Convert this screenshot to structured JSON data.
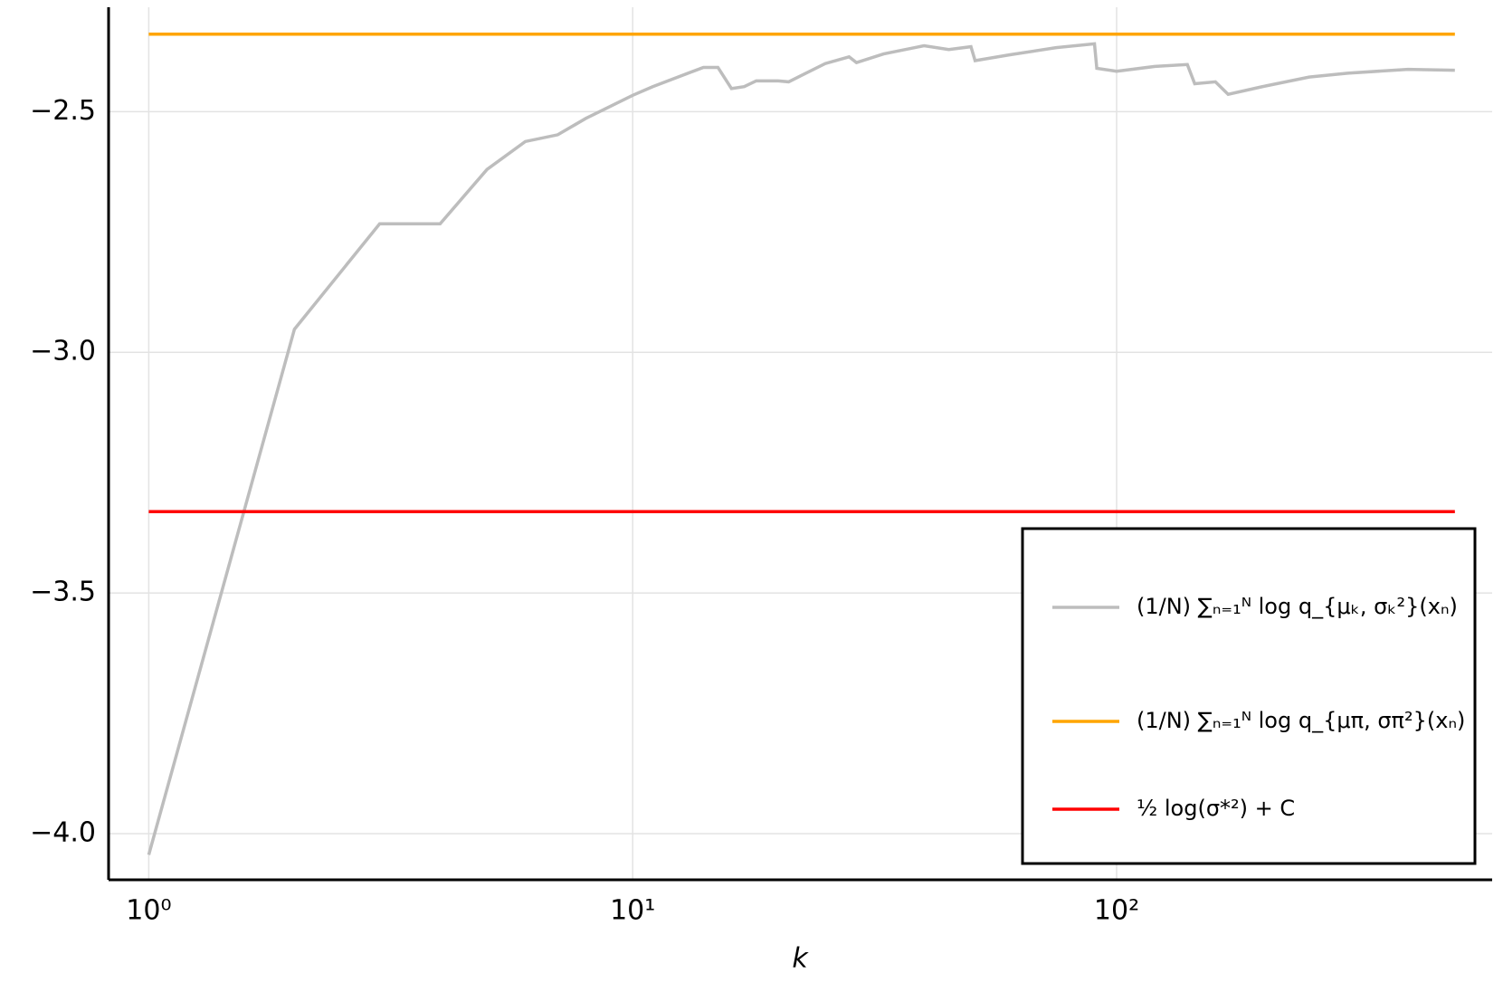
{
  "chart_data": {
    "type": "line",
    "xlabel": "k",
    "log_x": true,
    "grid": true,
    "legend": "bottom right",
    "xlim": [
      0.826,
      597
    ],
    "ylim": [
      -4.096,
      -2.283
    ],
    "xticks": [
      {
        "value": 1,
        "label": "10⁰"
      },
      {
        "value": 10,
        "label": "10¹"
      },
      {
        "value": 100,
        "label": "10²"
      }
    ],
    "yticks": [
      {
        "value": -4.0,
        "label": "−4.0"
      },
      {
        "value": -3.5,
        "label": "−3.5"
      },
      {
        "value": -3.0,
        "label": "−3.0"
      },
      {
        "value": -2.5,
        "label": "−2.5"
      }
    ],
    "series": [
      {
        "name": "(1/N) ∑ₙ₌₁ᴺ log q_{μₖ, σₖ²}(xₙ)",
        "color": "#bdbdbd",
        "x": [
          1,
          2,
          3,
          4,
          5,
          6,
          7,
          8,
          10,
          11,
          14,
          15,
          16,
          17,
          18,
          20,
          21,
          25,
          28,
          29,
          33,
          40,
          45,
          50,
          51,
          60,
          75,
          90,
          91,
          100,
          120,
          140,
          145,
          160,
          170,
          200,
          250,
          300,
          400,
          500
        ],
        "values": [
          -4.044,
          -2.952,
          -2.733,
          -2.733,
          -2.62,
          -2.562,
          -2.548,
          -2.514,
          -2.466,
          -2.448,
          -2.408,
          -2.408,
          -2.452,
          -2.448,
          -2.436,
          -2.436,
          -2.438,
          -2.4,
          -2.386,
          -2.398,
          -2.38,
          -2.363,
          -2.371,
          -2.365,
          -2.394,
          -2.382,
          -2.367,
          -2.359,
          -2.41,
          -2.416,
          -2.406,
          -2.402,
          -2.442,
          -2.438,
          -2.464,
          -2.448,
          -2.428,
          -2.42,
          -2.412,
          -2.414
        ]
      },
      {
        "name": "(1/N) ∑ₙ₌₁ᴺ log q_{μπ, σπ²}(xₙ)",
        "color": "#ffa500",
        "x": [
          1,
          500
        ],
        "values": [
          -2.339,
          -2.339
        ]
      },
      {
        "name": "½ log(σ*²) + C",
        "color": "#ff0000",
        "x": [
          1,
          500
        ],
        "values": [
          -3.331,
          -3.331
        ]
      }
    ]
  }
}
